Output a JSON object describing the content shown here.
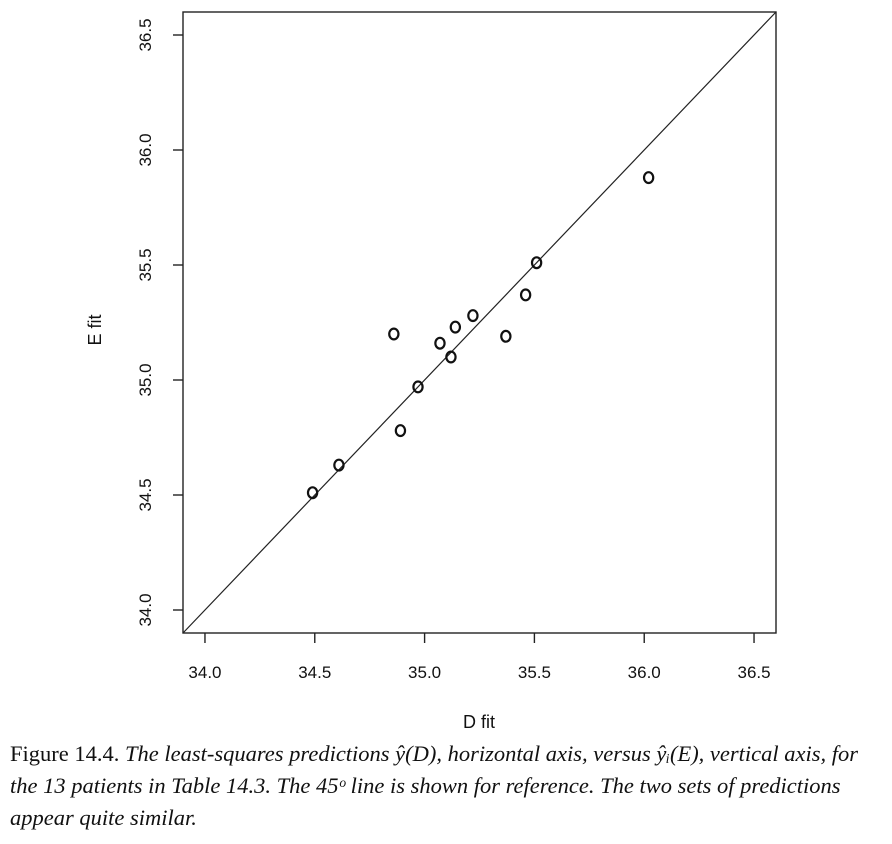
{
  "chart_data": {
    "type": "scatter",
    "xlabel": "D fit",
    "ylabel": "E fit",
    "xlim": [
      33.9,
      36.6
    ],
    "ylim": [
      33.9,
      36.6
    ],
    "xticks": [
      "34.0",
      "34.5",
      "35.0",
      "35.5",
      "36.0",
      "36.5"
    ],
    "yticks": [
      "34.0",
      "34.5",
      "35.0",
      "35.5",
      "36.0",
      "36.5"
    ],
    "reference_line": "45 degree line y = x",
    "grid": false,
    "marker": "open circle",
    "points": [
      {
        "x": 34.49,
        "y": 34.51
      },
      {
        "x": 34.61,
        "y": 34.63
      },
      {
        "x": 34.86,
        "y": 35.2
      },
      {
        "x": 34.89,
        "y": 34.78
      },
      {
        "x": 34.97,
        "y": 34.97
      },
      {
        "x": 35.07,
        "y": 35.16
      },
      {
        "x": 35.12,
        "y": 35.1
      },
      {
        "x": 35.14,
        "y": 35.23
      },
      {
        "x": 35.22,
        "y": 35.28
      },
      {
        "x": 35.37,
        "y": 35.19
      },
      {
        "x": 35.46,
        "y": 35.37
      },
      {
        "x": 35.51,
        "y": 35.51
      },
      {
        "x": 36.02,
        "y": 35.88
      }
    ]
  },
  "caption": {
    "figure_label": "Figure 14.4.",
    "text": "The least-squares predictions ŷ(D), horizontal axis, versus ŷᵢ(E), vertical axis, for the 13 patients in Table 14.3. The 45ᵒ line is shown for reference. The two sets of predictions appear quite similar."
  }
}
